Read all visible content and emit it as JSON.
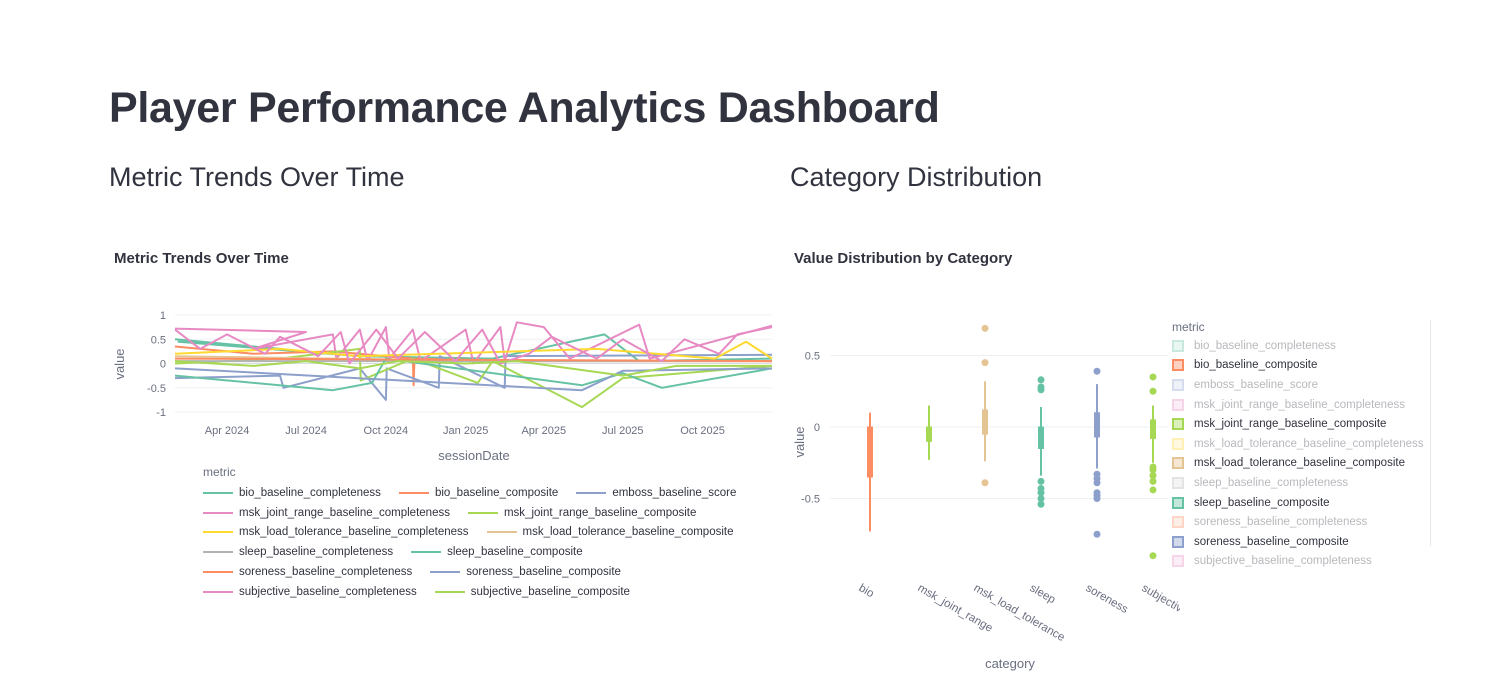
{
  "page": {
    "title": "Player Performance Analytics Dashboard"
  },
  "sections": {
    "left": "Metric Trends Over Time",
    "right": "Category Distribution"
  },
  "chart_data": [
    {
      "type": "line",
      "title": "Metric Trends Over Time",
      "xlabel": "sessionDate",
      "ylabel": "value",
      "xlim": [
        "2024-02-01",
        "2025-12-20"
      ],
      "ylim": [
        -1,
        1
      ],
      "xticks": [
        {
          "date": "2024-04-01",
          "label": "Apr 2024"
        },
        {
          "date": "2024-07-01",
          "label": "Jul 2024"
        },
        {
          "date": "2024-10-01",
          "label": "Oct 2024"
        },
        {
          "date": "2025-01-01",
          "label": "Jan 2025"
        },
        {
          "date": "2025-04-01",
          "label": "Apr 2025"
        },
        {
          "date": "2025-07-01",
          "label": "Jul 2025"
        },
        {
          "date": "2025-10-01",
          "label": "Oct 2025"
        }
      ],
      "yticks": [
        1,
        0.5,
        0,
        -0.5,
        -1
      ],
      "grid": true,
      "legend_title": "metric",
      "legend_placement": "bottom",
      "series": [
        {
          "name": "bio_baseline_completeness",
          "color": "#66c2a5",
          "points": [
            [
              "2024-02-01",
              0.5
            ],
            [
              "2024-06-01",
              0.3
            ],
            [
              "2024-02-05",
              0.45
            ],
            [
              "2024-09-01",
              0.15
            ],
            [
              "2025-02-01",
              0.1
            ],
            [
              "2025-06-10",
              0.6
            ],
            [
              "2025-07-20",
              0.05
            ],
            [
              "2025-12-20",
              0.1
            ]
          ]
        },
        {
          "name": "bio_baseline_composite",
          "color": "#fc8d62",
          "points": [
            [
              "2024-02-01",
              0.35
            ],
            [
              "2024-05-01",
              0.2
            ],
            [
              "2024-08-01",
              0.25
            ],
            [
              "2024-11-01",
              0.1
            ],
            [
              "2024-11-02",
              -0.45
            ],
            [
              "2024-11-03",
              0.1
            ],
            [
              "2025-03-01",
              0.05
            ],
            [
              "2025-12-20",
              0.05
            ]
          ]
        },
        {
          "name": "emboss_baseline_score",
          "color": "#8da0cb",
          "points": [
            [
              "2024-02-01",
              -0.3
            ],
            [
              "2024-06-01",
              -0.25
            ],
            [
              "2024-06-05",
              -0.5
            ],
            [
              "2024-09-01",
              -0.1
            ],
            [
              "2024-10-01",
              -0.75
            ],
            [
              "2024-10-02",
              -0.1
            ],
            [
              "2024-12-01",
              -0.5
            ],
            [
              "2024-12-02",
              0.15
            ],
            [
              "2025-02-15",
              -0.5
            ],
            [
              "2025-02-16",
              0.15
            ],
            [
              "2025-12-20",
              0.18
            ]
          ]
        },
        {
          "name": "msk_joint_range_baseline_completeness",
          "color": "#e78ac3",
          "points": [
            [
              "2024-02-01",
              0.72
            ],
            [
              "2024-07-01",
              0.65
            ],
            [
              "2024-05-01",
              0.3
            ],
            [
              "2024-08-01",
              0.6
            ],
            [
              "2024-08-05",
              0.1
            ],
            [
              "2024-09-01",
              0.7
            ],
            [
              "2024-09-10",
              0.05
            ],
            [
              "2024-10-01",
              0.75
            ],
            [
              "2024-10-05",
              0.1
            ],
            [
              "2024-11-01",
              0.7
            ],
            [
              "2024-11-10",
              0.05
            ],
            [
              "2025-01-01",
              0.7
            ],
            [
              "2025-01-10",
              0.0
            ],
            [
              "2025-02-10",
              0.75
            ],
            [
              "2025-02-15",
              0.05
            ],
            [
              "2025-03-01",
              0.85
            ],
            [
              "2025-04-01",
              0.75
            ],
            [
              "2025-05-01",
              0.1
            ],
            [
              "2025-07-20",
              0.8
            ],
            [
              "2025-08-01",
              0.1
            ],
            [
              "2025-12-20",
              0.78
            ]
          ]
        },
        {
          "name": "msk_joint_range_baseline_composite",
          "color": "#a6d854",
          "points": [
            [
              "2024-02-01",
              0.0
            ],
            [
              "2024-06-01",
              0.1
            ],
            [
              "2024-09-01",
              0.3
            ],
            [
              "2024-09-02",
              -0.35
            ],
            [
              "2024-11-01",
              0.1
            ],
            [
              "2025-01-15",
              -0.4
            ],
            [
              "2025-02-01",
              0.05
            ],
            [
              "2025-05-15",
              -0.9
            ],
            [
              "2025-07-01",
              -0.3
            ],
            [
              "2025-12-20",
              -0.05
            ]
          ]
        },
        {
          "name": "msk_load_tolerance_baseline_completeness",
          "color": "#ffd92f",
          "points": [
            [
              "2024-02-01",
              0.2
            ],
            [
              "2024-06-01",
              0.3
            ],
            [
              "2024-09-01",
              0.15
            ],
            [
              "2025-06-01",
              0.3
            ],
            [
              "2025-10-15",
              0.1
            ],
            [
              "2025-11-20",
              0.45
            ],
            [
              "2025-12-20",
              0.1
            ]
          ]
        },
        {
          "name": "msk_load_tolerance_baseline_composite",
          "color": "#e5c494",
          "points": [
            [
              "2024-02-01",
              0.15
            ],
            [
              "2024-08-01",
              0.1
            ],
            [
              "2025-02-01",
              0.05
            ],
            [
              "2025-12-20",
              0.05
            ]
          ]
        },
        {
          "name": "sleep_baseline_completeness",
          "color": "#b3b3b3",
          "points": [
            [
              "2024-02-01",
              0.05
            ],
            [
              "2025-12-20",
              0.05
            ]
          ]
        },
        {
          "name": "sleep_baseline_composite",
          "color": "#66c2a5",
          "points": [
            [
              "2024-02-01",
              -0.25
            ],
            [
              "2024-08-01",
              -0.55
            ],
            [
              "2024-09-15",
              -0.4
            ],
            [
              "2024-10-01",
              0.1
            ],
            [
              "2025-05-15",
              -0.45
            ],
            [
              "2025-07-01",
              -0.2
            ],
            [
              "2025-08-15",
              -0.5
            ],
            [
              "2025-12-20",
              -0.1
            ]
          ]
        },
        {
          "name": "soreness_baseline_completeness",
          "color": "#fc8d62",
          "points": [
            [
              "2024-02-01",
              0.1
            ],
            [
              "2025-12-20",
              0.05
            ]
          ]
        },
        {
          "name": "soreness_baseline_composite",
          "color": "#8da0cb",
          "points": [
            [
              "2024-02-01",
              -0.1
            ],
            [
              "2025-05-15",
              -0.55
            ],
            [
              "2025-07-01",
              -0.15
            ],
            [
              "2025-12-20",
              -0.1
            ]
          ]
        },
        {
          "name": "subjective_baseline_completeness",
          "color": "#e78ac3",
          "points": [
            [
              "2024-02-01",
              0.7
            ],
            [
              "2024-03-01",
              0.3
            ],
            [
              "2024-04-01",
              0.6
            ],
            [
              "2024-05-15",
              0.2
            ],
            [
              "2024-06-01",
              0.55
            ],
            [
              "2024-07-15",
              0.15
            ],
            [
              "2024-08-10",
              0.65
            ],
            [
              "2024-08-20",
              0.0
            ],
            [
              "2024-09-20",
              0.7
            ],
            [
              "2024-10-15",
              0.1
            ],
            [
              "2024-11-15",
              0.65
            ],
            [
              "2024-12-20",
              0.05
            ],
            [
              "2025-01-20",
              0.7
            ],
            [
              "2025-02-10",
              0.0
            ],
            [
              "2025-03-15",
              0.2
            ],
            [
              "2025-04-10",
              0.55
            ],
            [
              "2025-06-01",
              0.1
            ],
            [
              "2025-07-01",
              0.5
            ],
            [
              "2025-08-15",
              0.05
            ],
            [
              "2025-09-10",
              0.5
            ],
            [
              "2025-10-20",
              0.2
            ],
            [
              "2025-11-10",
              0.6
            ],
            [
              "2025-12-20",
              0.75
            ]
          ]
        },
        {
          "name": "subjective_baseline_composite",
          "color": "#a6d854",
          "points": [
            [
              "2024-02-01",
              0.05
            ],
            [
              "2024-05-01",
              -0.05
            ],
            [
              "2024-07-01",
              0.05
            ],
            [
              "2024-09-01",
              -0.1
            ],
            [
              "2024-10-15",
              0.05
            ],
            [
              "2025-01-01",
              0.0
            ],
            [
              "2025-03-01",
              0.05
            ],
            [
              "2025-07-01",
              -0.25
            ],
            [
              "2025-09-01",
              -0.05
            ],
            [
              "2025-12-20",
              -0.05
            ]
          ]
        }
      ]
    },
    {
      "type": "box",
      "title": "Value Distribution by Category",
      "xlabel": "category",
      "ylabel": "value",
      "ylim": [
        -0.95,
        0.75
      ],
      "yticks": [
        0.5,
        0,
        -0.5
      ],
      "grid": true,
      "legend_title": "metric",
      "legend_placement": "right",
      "boxes": [
        {
          "category": "bio",
          "color": "#fc8d62",
          "min": -0.73,
          "q1": -0.35,
          "median": -0.3,
          "q3": 0.0,
          "max": 0.1,
          "outliers": []
        },
        {
          "category": "msk_joint_range",
          "color": "#a6d854",
          "min": -0.23,
          "q1": -0.1,
          "median": -0.05,
          "q3": 0.0,
          "max": 0.15,
          "outliers": []
        },
        {
          "category": "msk_load_tolerance",
          "color": "#e5c494",
          "min": -0.24,
          "q1": -0.05,
          "median": 0.03,
          "q3": 0.12,
          "max": 0.32,
          "outliers": [
            0.69,
            0.45,
            -0.39
          ]
        },
        {
          "category": "sleep",
          "color": "#66c2a5",
          "min": -0.34,
          "q1": -0.15,
          "median": -0.05,
          "q3": 0.0,
          "max": 0.14,
          "outliers": [
            0.33,
            0.28,
            0.26,
            -0.38,
            -0.43,
            -0.46,
            -0.5,
            -0.54
          ]
        },
        {
          "category": "soreness",
          "color": "#8da0cb",
          "min": -0.29,
          "q1": -0.07,
          "median": 0.0,
          "q3": 0.1,
          "max": 0.3,
          "outliers": [
            0.39,
            -0.33,
            -0.36,
            -0.39,
            -0.46,
            -0.48,
            -0.5,
            -0.75
          ]
        },
        {
          "category": "subjective",
          "color": "#a6d854",
          "min": -0.25,
          "q1": -0.08,
          "median": 0.0,
          "q3": 0.05,
          "max": 0.15,
          "outliers": [
            0.35,
            0.25,
            -0.28,
            -0.3,
            -0.34,
            -0.38,
            -0.44,
            -0.9
          ]
        }
      ],
      "legend": [
        {
          "name": "bio_baseline_completeness",
          "color": "#66c2a5",
          "active": false
        },
        {
          "name": "bio_baseline_composite",
          "color": "#fc8d62",
          "active": true
        },
        {
          "name": "emboss_baseline_score",
          "color": "#8da0cb",
          "active": false
        },
        {
          "name": "msk_joint_range_baseline_completeness",
          "color": "#e78ac3",
          "active": false
        },
        {
          "name": "msk_joint_range_baseline_composite",
          "color": "#a6d854",
          "active": true
        },
        {
          "name": "msk_load_tolerance_baseline_completeness",
          "color": "#ffd92f",
          "active": false
        },
        {
          "name": "msk_load_tolerance_baseline_composite",
          "color": "#e5c494",
          "active": true
        },
        {
          "name": "sleep_baseline_completeness",
          "color": "#b3b3b3",
          "active": false
        },
        {
          "name": "sleep_baseline_composite",
          "color": "#66c2a5",
          "active": true
        },
        {
          "name": "soreness_baseline_completeness",
          "color": "#fc8d62",
          "active": false
        },
        {
          "name": "soreness_baseline_composite",
          "color": "#8da0cb",
          "active": true
        },
        {
          "name": "subjective_baseline_completeness",
          "color": "#e78ac3",
          "active": false
        }
      ]
    }
  ]
}
